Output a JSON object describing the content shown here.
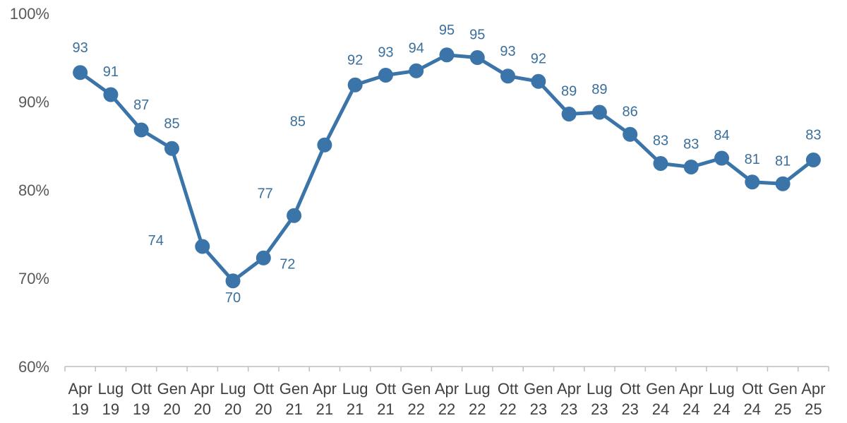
{
  "chart_data": {
    "type": "line",
    "title": "",
    "xlabel": "",
    "ylabel": "",
    "ylim": [
      60,
      100
    ],
    "yticks": [
      "60%",
      "70%",
      "80%",
      "90%",
      "100%"
    ],
    "ytick_values": [
      60,
      70,
      80,
      90,
      100
    ],
    "grid": false,
    "legend": "none",
    "color": "#3a74a8",
    "categories": [
      [
        "Apr",
        "19"
      ],
      [
        "Lug",
        "19"
      ],
      [
        "Ott",
        "19"
      ],
      [
        "Gen",
        "20"
      ],
      [
        "Apr",
        "20"
      ],
      [
        "Lug",
        "20"
      ],
      [
        "Ott",
        "20"
      ],
      [
        "Gen",
        "21"
      ],
      [
        "Apr",
        "21"
      ],
      [
        "Lug",
        "21"
      ],
      [
        "Ott",
        "21"
      ],
      [
        "Gen",
        "22"
      ],
      [
        "Apr",
        "22"
      ],
      [
        "Lug",
        "22"
      ],
      [
        "Ott",
        "22"
      ],
      [
        "Gen",
        "23"
      ],
      [
        "Apr",
        "23"
      ],
      [
        "Lug",
        "23"
      ],
      [
        "Ott",
        "23"
      ],
      [
        "Gen",
        "24"
      ],
      [
        "Apr",
        "24"
      ],
      [
        "Lug",
        "24"
      ],
      [
        "Ott",
        "24"
      ],
      [
        "Gen",
        "25"
      ],
      [
        "Apr",
        "25"
      ]
    ],
    "values": [
      93.3,
      90.8,
      86.8,
      84.7,
      73.6,
      69.7,
      72.3,
      77.1,
      85.1,
      91.9,
      93.0,
      93.5,
      95.3,
      95.0,
      92.9,
      92.3,
      88.6,
      88.8,
      86.3,
      83.0,
      82.6,
      83.6,
      80.9,
      80.7,
      83.4
    ],
    "labels": [
      "93",
      "91",
      "87",
      "85",
      "74",
      "70",
      "72",
      "77",
      "85",
      "92",
      "93",
      "94",
      "95",
      "95",
      "93",
      "92",
      "89",
      "89",
      "86",
      "83",
      "83",
      "84",
      "81",
      "81",
      "83"
    ]
  }
}
